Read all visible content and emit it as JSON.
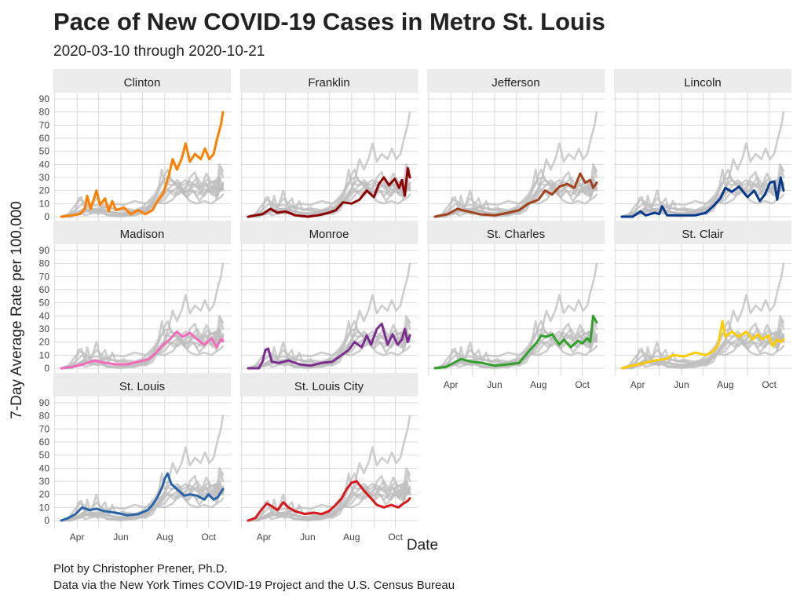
{
  "chart_data": {
    "type": "line",
    "title": "Pace of New COVID-19 Cases in Metro St. Louis",
    "subtitle": "2020-03-10 through 2020-10-21",
    "xlabel": "Date",
    "ylabel": "7-Day Average Rate per 100,000",
    "caption_lines": [
      "Plot by Christopher Prener, Ph.D.",
      "Data via the New York Times COVID-19 Project and the U.S. Census Bureau"
    ],
    "x_range": [
      "2020-03-10",
      "2020-10-21"
    ],
    "ylim": [
      0,
      90
    ],
    "y_ticks": [
      0,
      10,
      20,
      30,
      40,
      50,
      60,
      70,
      80,
      90
    ],
    "x_ticks": [
      {
        "label": "Apr",
        "date": "2020-04-01"
      },
      {
        "label": "Jun",
        "date": "2020-06-01"
      },
      {
        "label": "Aug",
        "date": "2020-08-01"
      },
      {
        "label": "Oct",
        "date": "2020-10-01"
      }
    ],
    "background_series_color": "#bebebe",
    "series": [
      {
        "name": "Clinton",
        "color": "#ff7f00",
        "points": [
          [
            "2020-03-10",
            0
          ],
          [
            "2020-03-25",
            1
          ],
          [
            "2020-04-05",
            2
          ],
          [
            "2020-04-12",
            6
          ],
          [
            "2020-04-15",
            16
          ],
          [
            "2020-04-20",
            6
          ],
          [
            "2020-04-28",
            20
          ],
          [
            "2020-05-03",
            9
          ],
          [
            "2020-05-10",
            14
          ],
          [
            "2020-05-15",
            4
          ],
          [
            "2020-05-20",
            12
          ],
          [
            "2020-05-25",
            5
          ],
          [
            "2020-06-05",
            7
          ],
          [
            "2020-06-15",
            2
          ],
          [
            "2020-06-25",
            5
          ],
          [
            "2020-07-05",
            2
          ],
          [
            "2020-07-15",
            5
          ],
          [
            "2020-07-22",
            12
          ],
          [
            "2020-07-30",
            18
          ],
          [
            "2020-08-07",
            32
          ],
          [
            "2020-08-12",
            44
          ],
          [
            "2020-08-18",
            36
          ],
          [
            "2020-08-25",
            45
          ],
          [
            "2020-08-30",
            56
          ],
          [
            "2020-09-05",
            42
          ],
          [
            "2020-09-12",
            48
          ],
          [
            "2020-09-20",
            44
          ],
          [
            "2020-09-26",
            52
          ],
          [
            "2020-10-02",
            44
          ],
          [
            "2020-10-08",
            48
          ],
          [
            "2020-10-13",
            60
          ],
          [
            "2020-10-18",
            70
          ],
          [
            "2020-10-21",
            80
          ]
        ]
      },
      {
        "name": "Franklin",
        "color": "#8b0000",
        "points": [
          [
            "2020-03-10",
            0
          ],
          [
            "2020-03-30",
            2
          ],
          [
            "2020-04-10",
            6
          ],
          [
            "2020-04-20",
            3
          ],
          [
            "2020-05-01",
            4
          ],
          [
            "2020-05-15",
            1
          ],
          [
            "2020-06-01",
            0
          ],
          [
            "2020-06-15",
            1
          ],
          [
            "2020-06-30",
            3
          ],
          [
            "2020-07-10",
            5
          ],
          [
            "2020-07-20",
            11
          ],
          [
            "2020-08-01",
            10
          ],
          [
            "2020-08-12",
            13
          ],
          [
            "2020-08-22",
            20
          ],
          [
            "2020-09-01",
            15
          ],
          [
            "2020-09-08",
            25
          ],
          [
            "2020-09-15",
            30
          ],
          [
            "2020-09-22",
            24
          ],
          [
            "2020-09-30",
            29
          ],
          [
            "2020-10-06",
            22
          ],
          [
            "2020-10-10",
            28
          ],
          [
            "2020-10-14",
            16
          ],
          [
            "2020-10-18",
            37
          ],
          [
            "2020-10-21",
            30
          ]
        ]
      },
      {
        "name": "Jefferson",
        "color": "#a0421c",
        "points": [
          [
            "2020-03-10",
            0
          ],
          [
            "2020-03-28",
            2
          ],
          [
            "2020-04-10",
            6
          ],
          [
            "2020-04-25",
            4
          ],
          [
            "2020-05-10",
            2
          ],
          [
            "2020-06-01",
            1
          ],
          [
            "2020-06-20",
            3
          ],
          [
            "2020-07-05",
            5
          ],
          [
            "2020-07-18",
            10
          ],
          [
            "2020-08-01",
            13
          ],
          [
            "2020-08-10",
            20
          ],
          [
            "2020-08-20",
            17
          ],
          [
            "2020-08-30",
            23
          ],
          [
            "2020-09-10",
            25
          ],
          [
            "2020-09-20",
            22
          ],
          [
            "2020-09-28",
            33
          ],
          [
            "2020-10-05",
            26
          ],
          [
            "2020-10-12",
            28
          ],
          [
            "2020-10-16",
            22
          ],
          [
            "2020-10-21",
            26
          ]
        ]
      },
      {
        "name": "Lincoln",
        "color": "#0a3a8c",
        "points": [
          [
            "2020-03-10",
            0
          ],
          [
            "2020-03-25",
            0
          ],
          [
            "2020-04-05",
            4
          ],
          [
            "2020-04-12",
            1
          ],
          [
            "2020-04-25",
            3
          ],
          [
            "2020-05-01",
            2
          ],
          [
            "2020-05-05",
            8
          ],
          [
            "2020-05-12",
            1
          ],
          [
            "2020-06-01",
            1
          ],
          [
            "2020-06-20",
            1
          ],
          [
            "2020-07-05",
            3
          ],
          [
            "2020-07-15",
            8
          ],
          [
            "2020-07-25",
            14
          ],
          [
            "2020-08-01",
            22
          ],
          [
            "2020-08-10",
            19
          ],
          [
            "2020-08-20",
            23
          ],
          [
            "2020-09-01",
            15
          ],
          [
            "2020-09-10",
            20
          ],
          [
            "2020-09-18",
            12
          ],
          [
            "2020-09-25",
            17
          ],
          [
            "2020-10-02",
            26
          ],
          [
            "2020-10-08",
            27
          ],
          [
            "2020-10-12",
            13
          ],
          [
            "2020-10-17",
            30
          ],
          [
            "2020-10-21",
            20
          ]
        ]
      },
      {
        "name": "Madison",
        "color": "#f36bb7",
        "points": [
          [
            "2020-03-10",
            0
          ],
          [
            "2020-03-25",
            1
          ],
          [
            "2020-04-10",
            3
          ],
          [
            "2020-04-25",
            6
          ],
          [
            "2020-05-10",
            4
          ],
          [
            "2020-05-25",
            3
          ],
          [
            "2020-06-10",
            3
          ],
          [
            "2020-06-25",
            5
          ],
          [
            "2020-07-10",
            7
          ],
          [
            "2020-07-20",
            12
          ],
          [
            "2020-07-28",
            17
          ],
          [
            "2020-08-08",
            22
          ],
          [
            "2020-08-18",
            28
          ],
          [
            "2020-08-26",
            24
          ],
          [
            "2020-09-05",
            27
          ],
          [
            "2020-09-15",
            22
          ],
          [
            "2020-09-25",
            18
          ],
          [
            "2020-10-05",
            23
          ],
          [
            "2020-10-12",
            16
          ],
          [
            "2020-10-18",
            22
          ],
          [
            "2020-10-21",
            21
          ]
        ]
      },
      {
        "name": "Monroe",
        "color": "#7b2d8e",
        "points": [
          [
            "2020-03-10",
            0
          ],
          [
            "2020-03-25",
            0
          ],
          [
            "2020-03-30",
            5
          ],
          [
            "2020-04-03",
            14
          ],
          [
            "2020-04-07",
            15
          ],
          [
            "2020-04-12",
            5
          ],
          [
            "2020-04-22",
            4
          ],
          [
            "2020-05-05",
            6
          ],
          [
            "2020-05-20",
            3
          ],
          [
            "2020-06-05",
            2
          ],
          [
            "2020-06-20",
            4
          ],
          [
            "2020-07-05",
            5
          ],
          [
            "2020-07-18",
            10
          ],
          [
            "2020-07-28",
            14
          ],
          [
            "2020-08-05",
            20
          ],
          [
            "2020-08-15",
            16
          ],
          [
            "2020-08-22",
            25
          ],
          [
            "2020-08-28",
            18
          ],
          [
            "2020-09-05",
            30
          ],
          [
            "2020-09-12",
            34
          ],
          [
            "2020-09-20",
            18
          ],
          [
            "2020-09-27",
            26
          ],
          [
            "2020-10-04",
            18
          ],
          [
            "2020-10-10",
            22
          ],
          [
            "2020-10-14",
            30
          ],
          [
            "2020-10-18",
            20
          ],
          [
            "2020-10-21",
            25
          ]
        ]
      },
      {
        "name": "St. Charles",
        "color": "#33a02c",
        "points": [
          [
            "2020-03-10",
            0
          ],
          [
            "2020-03-25",
            1
          ],
          [
            "2020-04-05",
            4
          ],
          [
            "2020-04-15",
            7
          ],
          [
            "2020-04-30",
            5
          ],
          [
            "2020-05-15",
            4
          ],
          [
            "2020-06-01",
            2
          ],
          [
            "2020-06-20",
            3
          ],
          [
            "2020-07-05",
            4
          ],
          [
            "2020-07-20",
            14
          ],
          [
            "2020-07-30",
            20
          ],
          [
            "2020-08-05",
            25
          ],
          [
            "2020-08-12",
            24
          ],
          [
            "2020-08-20",
            26
          ],
          [
            "2020-08-30",
            18
          ],
          [
            "2020-09-05",
            22
          ],
          [
            "2020-09-15",
            16
          ],
          [
            "2020-09-25",
            21
          ],
          [
            "2020-10-01",
            19
          ],
          [
            "2020-10-08",
            23
          ],
          [
            "2020-10-12",
            20
          ],
          [
            "2020-10-16",
            40
          ],
          [
            "2020-10-21",
            35
          ]
        ]
      },
      {
        "name": "St. Clair",
        "color": "#ffcc00",
        "points": [
          [
            "2020-03-10",
            0
          ],
          [
            "2020-03-25",
            2
          ],
          [
            "2020-04-10",
            4
          ],
          [
            "2020-04-25",
            6
          ],
          [
            "2020-05-10",
            7
          ],
          [
            "2020-05-20",
            10
          ],
          [
            "2020-06-05",
            9
          ],
          [
            "2020-06-20",
            12
          ],
          [
            "2020-07-05",
            10
          ],
          [
            "2020-07-15",
            13
          ],
          [
            "2020-07-22",
            18
          ],
          [
            "2020-07-28",
            36
          ],
          [
            "2020-08-01",
            24
          ],
          [
            "2020-08-10",
            28
          ],
          [
            "2020-08-20",
            24
          ],
          [
            "2020-08-30",
            28
          ],
          [
            "2020-09-08",
            22
          ],
          [
            "2020-09-15",
            26
          ],
          [
            "2020-09-22",
            22
          ],
          [
            "2020-09-30",
            25
          ],
          [
            "2020-10-06",
            17
          ],
          [
            "2020-10-12",
            22
          ],
          [
            "2020-10-17",
            20
          ],
          [
            "2020-10-21",
            22
          ]
        ]
      },
      {
        "name": "St. Louis",
        "color": "#2b63a8",
        "points": [
          [
            "2020-03-10",
            0
          ],
          [
            "2020-03-20",
            2
          ],
          [
            "2020-03-30",
            5
          ],
          [
            "2020-04-08",
            10
          ],
          [
            "2020-04-18",
            8
          ],
          [
            "2020-04-28",
            9
          ],
          [
            "2020-05-10",
            7
          ],
          [
            "2020-05-25",
            6
          ],
          [
            "2020-06-10",
            4
          ],
          [
            "2020-06-25",
            5
          ],
          [
            "2020-07-08",
            8
          ],
          [
            "2020-07-15",
            12
          ],
          [
            "2020-07-22",
            18
          ],
          [
            "2020-07-28",
            25
          ],
          [
            "2020-08-01",
            32
          ],
          [
            "2020-08-05",
            36
          ],
          [
            "2020-08-10",
            28
          ],
          [
            "2020-08-18",
            24
          ],
          [
            "2020-08-28",
            19
          ],
          [
            "2020-09-05",
            20
          ],
          [
            "2020-09-15",
            19
          ],
          [
            "2020-09-25",
            16
          ],
          [
            "2020-10-01",
            20
          ],
          [
            "2020-10-08",
            16
          ],
          [
            "2020-10-14",
            18
          ],
          [
            "2020-10-21",
            24
          ]
        ]
      },
      {
        "name": "St. Louis City",
        "color": "#d7191c",
        "points": [
          [
            "2020-03-10",
            0
          ],
          [
            "2020-03-20",
            2
          ],
          [
            "2020-03-28",
            8
          ],
          [
            "2020-04-05",
            13
          ],
          [
            "2020-04-12",
            11
          ],
          [
            "2020-04-20",
            8
          ],
          [
            "2020-04-28",
            14
          ],
          [
            "2020-05-05",
            10
          ],
          [
            "2020-05-15",
            7
          ],
          [
            "2020-05-28",
            5
          ],
          [
            "2020-06-10",
            6
          ],
          [
            "2020-06-20",
            5
          ],
          [
            "2020-06-30",
            7
          ],
          [
            "2020-07-08",
            11
          ],
          [
            "2020-07-18",
            17
          ],
          [
            "2020-07-25",
            24
          ],
          [
            "2020-08-01",
            29
          ],
          [
            "2020-08-08",
            30
          ],
          [
            "2020-08-18",
            23
          ],
          [
            "2020-08-28",
            17
          ],
          [
            "2020-09-05",
            12
          ],
          [
            "2020-09-15",
            10
          ],
          [
            "2020-09-25",
            12
          ],
          [
            "2020-10-05",
            10
          ],
          [
            "2020-10-12",
            13
          ],
          [
            "2020-10-18",
            15
          ],
          [
            "2020-10-21",
            17
          ]
        ]
      }
    ]
  }
}
